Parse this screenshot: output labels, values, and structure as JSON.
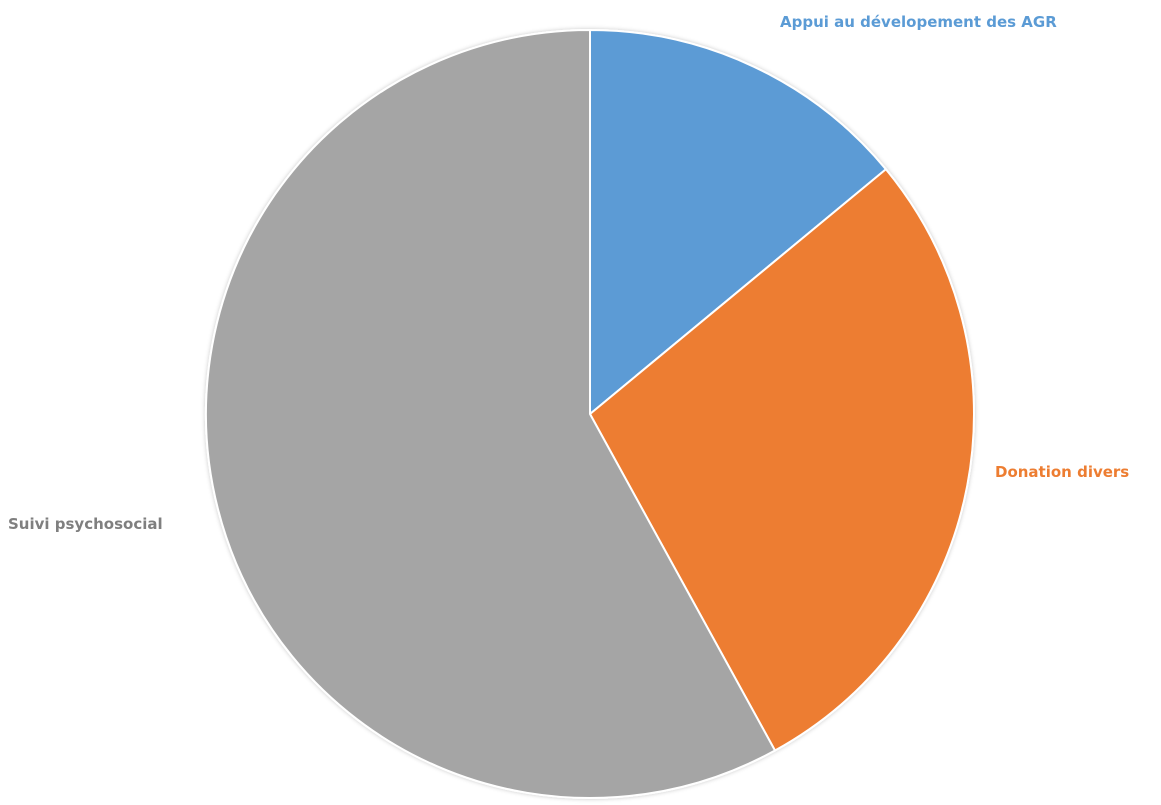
{
  "chart_data": {
    "type": "pie",
    "title": "",
    "start_angle_deg": 0,
    "direction": "clockwise",
    "label_color_matches_slice": true,
    "slices": [
      {
        "label": "Appui au dévelopement des AGR",
        "value": 14,
        "color": "#5b9bd5",
        "label_position": "top-right",
        "label_color": "#5b9bd5"
      },
      {
        "label": "Donation divers",
        "value": 28,
        "color": "#ed7d31",
        "label_position": "right",
        "label_color": "#ed7d31"
      },
      {
        "label": "Suivi psychosocial",
        "value": 58,
        "color": "#a5a5a5",
        "label_position": "left",
        "label_color": "#7f7f7f"
      }
    ]
  }
}
